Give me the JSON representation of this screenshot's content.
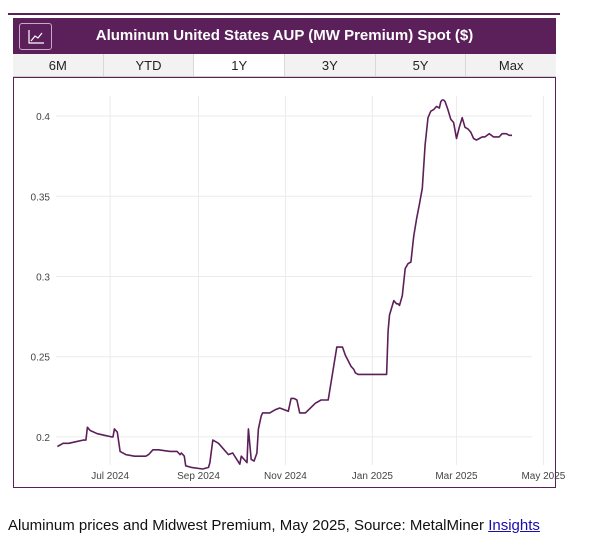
{
  "header": {
    "title": "Aluminum United States AUP (MW Premium) Spot ($)",
    "icon": "line-chart-icon",
    "background": "#5b1f5a"
  },
  "tabs": [
    {
      "label": "6M",
      "active": false
    },
    {
      "label": "YTD",
      "active": false
    },
    {
      "label": "1Y",
      "active": true
    },
    {
      "label": "3Y",
      "active": false
    },
    {
      "label": "5Y",
      "active": false
    },
    {
      "label": "Max",
      "active": false
    }
  ],
  "chart_data": {
    "type": "line",
    "title": "Aluminum United States AUP (MW Premium) Spot ($)",
    "xlabel": "",
    "ylabel": "",
    "ylim": [
      0.1825,
      0.4125
    ],
    "xlim": [
      -1,
      333
    ],
    "grid": true,
    "line_color": "#5b1f5a",
    "y_ticks": [
      {
        "value": 0.2,
        "label": "0.2"
      },
      {
        "value": 0.25,
        "label": "0.25"
      },
      {
        "value": 0.3,
        "label": "0.3"
      },
      {
        "value": 0.35,
        "label": "0.35"
      },
      {
        "value": 0.4,
        "label": "0.4"
      }
    ],
    "x_ticks": [
      {
        "day": 37,
        "label": "Jul 2024"
      },
      {
        "day": 99,
        "label": "Sep 2024"
      },
      {
        "day": 160,
        "label": "Nov 2024"
      },
      {
        "day": 221,
        "label": "Jan 2025"
      },
      {
        "day": 280,
        "label": "Mar 2025"
      },
      {
        "day": 341,
        "label": "May 2025"
      }
    ],
    "series": [
      {
        "name": "Aluminum United States AUP (MW Premium) Spot",
        "x": [
          0,
          4,
          8,
          13,
          18,
          20,
          21,
          23,
          28,
          33,
          38,
          39,
          40,
          42,
          44,
          48,
          54,
          62,
          64,
          67,
          71,
          79,
          84,
          86,
          87,
          89,
          90,
          94,
          102,
          106,
          107,
          109,
          113,
          120,
          123,
          128,
          129,
          133,
          134,
          136,
          138,
          140,
          141,
          143,
          144,
          149,
          153,
          156,
          159,
          162,
          164,
          166,
          168,
          170,
          174,
          181,
          185,
          190,
          196,
          200,
          202,
          206,
          208,
          209,
          211,
          214,
          216,
          217,
          219,
          221,
          223,
          226,
          231,
          232,
          233,
          236,
          238,
          239,
          240,
          242,
          244,
          246,
          248,
          250,
          252,
          254,
          256,
          258,
          260,
          262,
          264,
          266,
          268,
          269,
          270,
          271,
          272,
          274,
          276,
          278,
          280,
          282,
          284,
          286,
          288,
          290,
          292,
          294,
          296,
          298,
          300,
          303,
          306,
          310,
          312,
          315,
          317,
          319
        ],
        "values": [
          0.194,
          0.196,
          0.196,
          0.197,
          0.198,
          0.198,
          0.206,
          0.204,
          0.202,
          0.201,
          0.2,
          0.2,
          0.205,
          0.203,
          0.191,
          0.189,
          0.188,
          0.188,
          0.189,
          0.192,
          0.192,
          0.191,
          0.191,
          0.189,
          0.19,
          0.188,
          0.182,
          0.181,
          0.18,
          0.181,
          0.184,
          0.198,
          0.196,
          0.189,
          0.19,
          0.183,
          0.188,
          0.184,
          0.205,
          0.186,
          0.185,
          0.19,
          0.205,
          0.213,
          0.215,
          0.215,
          0.217,
          0.218,
          0.217,
          0.216,
          0.224,
          0.224,
          0.223,
          0.215,
          0.215,
          0.221,
          0.223,
          0.223,
          0.256,
          0.256,
          0.251,
          0.244,
          0.242,
          0.24,
          0.239,
          0.239,
          0.239,
          0.239,
          0.239,
          0.239,
          0.239,
          0.239,
          0.239,
          0.266,
          0.276,
          0.285,
          0.283,
          0.283,
          0.282,
          0.288,
          0.305,
          0.308,
          0.309,
          0.325,
          0.336,
          0.345,
          0.355,
          0.382,
          0.399,
          0.403,
          0.404,
          0.406,
          0.405,
          0.409,
          0.41,
          0.41,
          0.409,
          0.404,
          0.398,
          0.396,
          0.386,
          0.393,
          0.399,
          0.393,
          0.392,
          0.39,
          0.386,
          0.385,
          0.386,
          0.387,
          0.387,
          0.389,
          0.387,
          0.387,
          0.389,
          0.389,
          0.388,
          0.388
        ]
      }
    ]
  },
  "caption": {
    "text": "Aluminum prices and Midwest Premium, May 2025, Source: MetalMiner ",
    "link": "Insights"
  }
}
